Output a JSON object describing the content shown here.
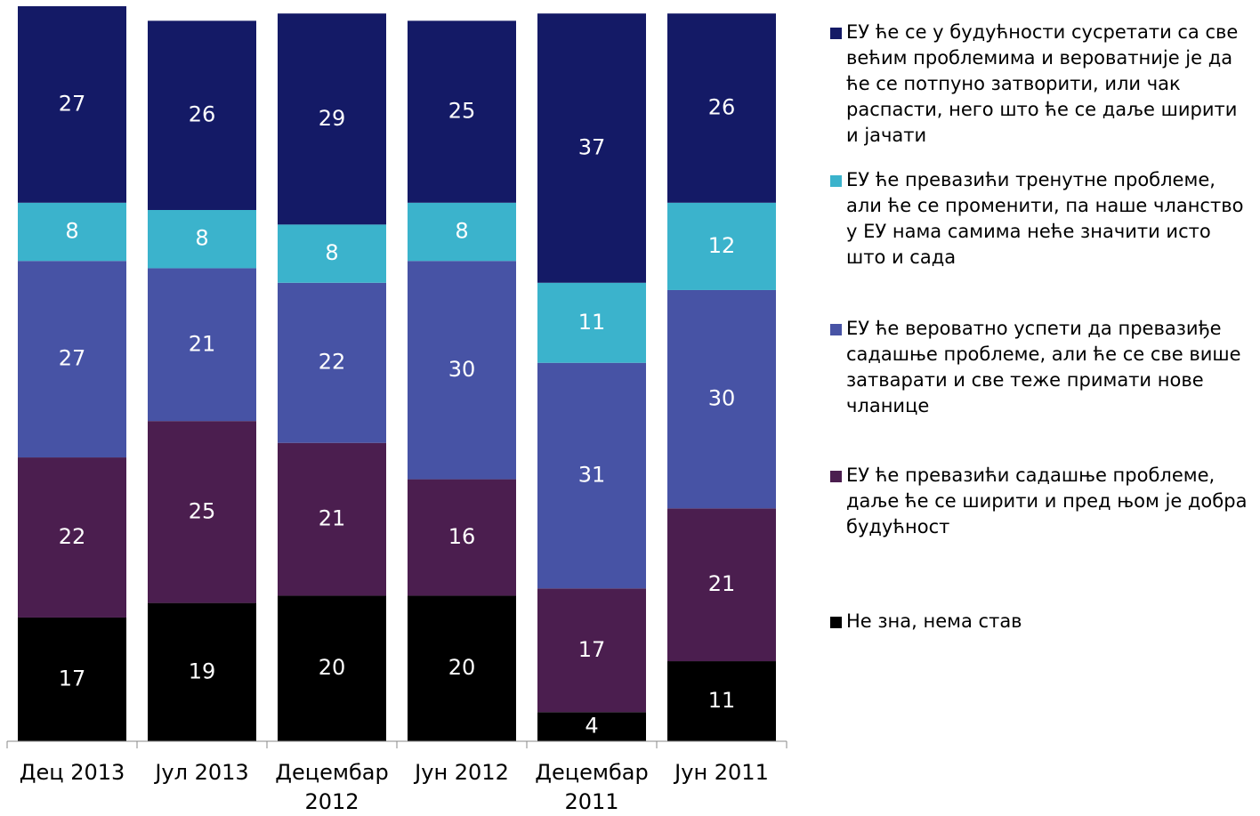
{
  "chart_data": {
    "type": "stacked_bar",
    "categories": [
      "Дец 2013",
      "Јул 2013",
      "Децембар 2012",
      "Јун 2012",
      "Децембар 2011",
      "Јун 2011"
    ],
    "series": [
      {
        "name": "ЕУ ће се у будућности сусретати са све већим проблемима и вероватније је да ће се потпуно затворити, или чак распасти, него што ће се даље ширити и јачати",
        "color": "#141a66",
        "values": [
          27,
          26,
          29,
          25,
          37,
          26
        ]
      },
      {
        "name": "ЕУ ће превазићи тренутне проблеме, али ће се променити, па наше чланство у ЕУ нама самима неће значити исто што и сада",
        "color": "#3bb3cc",
        "values": [
          8,
          8,
          8,
          8,
          11,
          12
        ]
      },
      {
        "name": "ЕУ ће вероватно успети да превазиђе садашње проблеме, али ће се све више затварати и све теже примати нове чланице",
        "color": "#4753a5",
        "values": [
          27,
          21,
          22,
          30,
          31,
          30
        ]
      },
      {
        "name": "ЕУ ће превазићи садашње проблеме, даље ће се ширити и пред њом је добра будућност",
        "color": "#4b1e4f",
        "values": [
          22,
          25,
          21,
          16,
          17,
          21
        ]
      },
      {
        "name": "Не зна, нема став",
        "color": "#000000",
        "values": [
          17,
          19,
          20,
          20,
          4,
          11
        ]
      }
    ]
  }
}
